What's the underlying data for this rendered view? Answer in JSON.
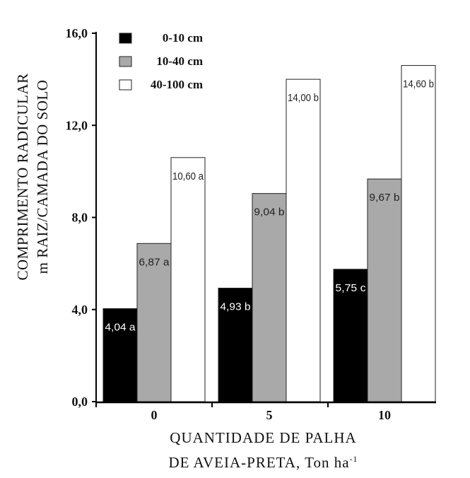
{
  "chart_data": {
    "type": "bar",
    "title": "",
    "xlabel_lines": [
      "QUANTIDADE DE PALHA",
      "DE AVEIA-PRETA, Ton ha"
    ],
    "xlabel_superscript": "-1",
    "ylabel_lines": [
      "COMPRIMENTO RADICULAR",
      "m RAIZ/CAMADA DO SOLO"
    ],
    "categories": [
      "0",
      "5",
      "10"
    ],
    "yticks": [
      "0,0",
      "4,0",
      "8,0",
      "12,0",
      "16,0"
    ],
    "ylim": [
      0,
      16
    ],
    "grid": false,
    "legend_position": "top-left",
    "series": [
      {
        "name": "0-10 cm",
        "color": "#000000",
        "label_color": "#ffffff",
        "values": [
          4.04,
          4.93,
          5.75
        ],
        "labels": [
          "4,04 a",
          "4,93 b",
          "5,75 c"
        ]
      },
      {
        "name": "10-40 cm",
        "color": "#a9a9a9",
        "label_color": "#222222",
        "values": [
          6.87,
          9.04,
          9.67
        ],
        "labels": [
          "6,87 a",
          "9,04 b",
          "9,67 b"
        ]
      },
      {
        "name": "40-100 cm",
        "color": "#ffffff",
        "label_color": "#222222",
        "values": [
          10.6,
          14.0,
          14.6
        ],
        "labels": [
          "10,60 a",
          "14,00 b",
          "14,60 b"
        ]
      }
    ]
  }
}
